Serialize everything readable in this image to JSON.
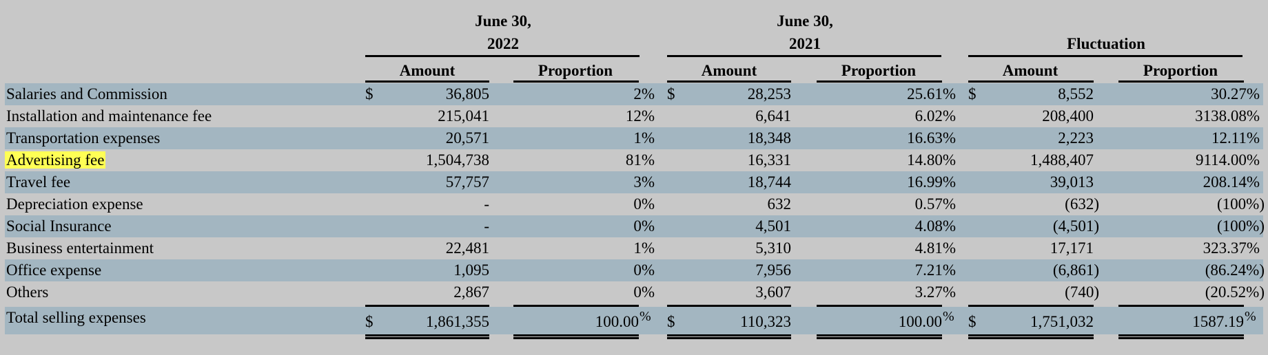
{
  "currency": "$",
  "headers": {
    "group_2022": {
      "line1": "June 30,",
      "line2": "2022"
    },
    "group_2021": {
      "line1": "June 30,",
      "line2": "2021"
    },
    "group_fluct": "Fluctuation",
    "amount": "Amount",
    "proportion": "Proportion"
  },
  "rows": [
    {
      "label": "Salaries and Commission",
      "amount_2022": "36,805",
      "prop_2022": "2%",
      "amount_2021": "28,253",
      "prop_2021": "25.61%",
      "amount_fluct": "8,552",
      "prop_fluct": "30.27%"
    },
    {
      "label": "Installation and maintenance fee",
      "amount_2022": "215,041",
      "prop_2022": "12%",
      "amount_2021": "6,641",
      "prop_2021": "6.02%",
      "amount_fluct": "208,400",
      "prop_fluct": "3138.08%"
    },
    {
      "label": "Transportation expenses",
      "amount_2022": "20,571",
      "prop_2022": "1%",
      "amount_2021": "18,348",
      "prop_2021": "16.63%",
      "amount_fluct": "2,223",
      "prop_fluct": "12.11%"
    },
    {
      "label": "Advertising fee",
      "amount_2022": "1,504,738",
      "prop_2022": "81%",
      "amount_2021": "16,331",
      "prop_2021": "14.80%",
      "amount_fluct": "1,488,407",
      "prop_fluct": "9114.00%"
    },
    {
      "label": "Travel fee",
      "amount_2022": "57,757",
      "prop_2022": "3%",
      "amount_2021": "18,744",
      "prop_2021": "16.99%",
      "amount_fluct": "39,013",
      "prop_fluct": "208.14%"
    },
    {
      "label": "Depreciation expense",
      "amount_2022": "-",
      "prop_2022": "0%",
      "amount_2021": "632",
      "prop_2021": "0.57%",
      "amount_fluct": "(632)",
      "prop_fluct": "(100%)"
    },
    {
      "label": "Social Insurance",
      "amount_2022": "-",
      "prop_2022": "0%",
      "amount_2021": "4,501",
      "prop_2021": "4.08%",
      "amount_fluct": "(4,501)",
      "prop_fluct": "(100%)"
    },
    {
      "label": "Business entertainment",
      "amount_2022": "22,481",
      "prop_2022": "1%",
      "amount_2021": "5,310",
      "prop_2021": "4.81%",
      "amount_fluct": "17,171",
      "prop_fluct": "323.37%"
    },
    {
      "label": "Office expense",
      "amount_2022": "1,095",
      "prop_2022": "0%",
      "amount_2021": "7,956",
      "prop_2021": "7.21%",
      "amount_fluct": "(6,861)",
      "prop_fluct": "(86.24%)"
    },
    {
      "label": "Others",
      "amount_2022": "2,867",
      "prop_2022": "0%",
      "amount_2021": "3,607",
      "prop_2021": "3.27%",
      "amount_fluct": "(740)",
      "prop_fluct": "(20.52%)"
    }
  ],
  "total": {
    "label": "Total selling expenses",
    "amount_2022": "1,861,355",
    "prop_2022_num": "100.00",
    "amount_2021": "110,323",
    "prop_2021_num": "100.00",
    "amount_fluct": "1,751,032",
    "prop_fluct_num": "1587.19",
    "pct_sign": "%"
  },
  "colors": {
    "page_background": "#c8c8c8",
    "row_band": "#a3b6c1",
    "highlight": "#ffff55"
  }
}
